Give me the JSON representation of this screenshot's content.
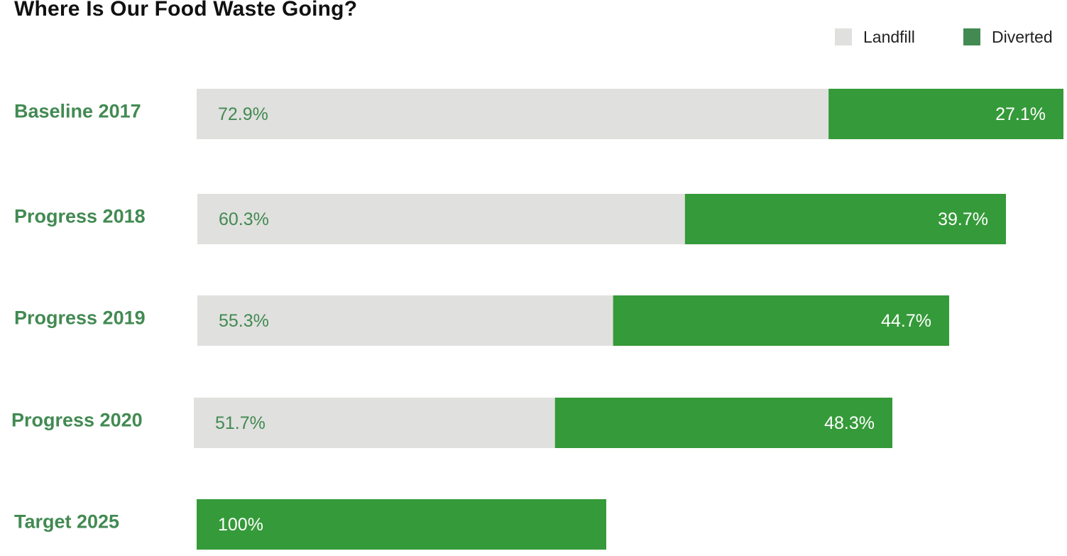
{
  "chart_data": {
    "type": "bar",
    "orientation": "horizontal",
    "stacked": true,
    "title": "Where Is Our Food Waste Going?",
    "categories": [
      "Baseline 2017",
      "Progress 2018",
      "Progress 2019",
      "Progress 2020",
      "Target 2025"
    ],
    "series": [
      {
        "name": "Landfill",
        "color": "#e0e0de",
        "values": [
          72.9,
          60.3,
          55.3,
          51.7,
          0
        ],
        "labels": [
          "72.9%",
          "60.3%",
          "55.3%",
          "51.7%",
          ""
        ]
      },
      {
        "name": "Diverted",
        "color": "#359a39",
        "values": [
          27.1,
          39.7,
          44.7,
          48.3,
          100
        ],
        "labels": [
          "27.1%",
          "39.7%",
          "44.7%",
          "48.3%",
          "100%"
        ]
      }
    ],
    "legend": {
      "position": "top-right",
      "items": [
        {
          "name": "Landfill",
          "color": "#e0e0de"
        },
        {
          "name": "Diverted",
          "color": "#428a52"
        }
      ]
    },
    "colors": {
      "category_label": "#428a52",
      "landfill_label": "#428a52",
      "diverted_label": "#ffffff"
    },
    "grid": false
  }
}
